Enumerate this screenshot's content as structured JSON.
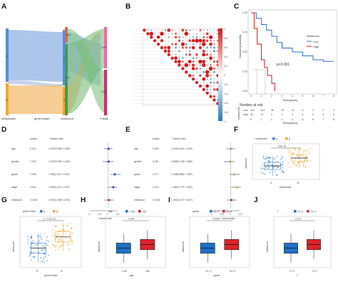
{
  "panel_labels": [
    "A",
    "B",
    "C",
    "D",
    "E",
    "F",
    "G",
    "H",
    "I",
    "J"
  ],
  "panel_a": {
    "axis_labels": [
      "m6Acluster",
      "geneCluster",
      "m6Ascore",
      "Fustat"
    ],
    "node_labels": [
      "A",
      "B",
      "A",
      "B",
      "High",
      "Low",
      "Alive",
      "Dead"
    ]
  },
  "panel_b": {
    "colorbar_ticks": [
      "1",
      "0.8",
      "0.6",
      "0.4",
      "0.2",
      "0",
      "-0.2",
      "-0.4",
      "-0.6",
      "-0.8",
      "-1"
    ]
  },
  "panel_c": {
    "ylabel": "Survival probability",
    "xlabel": "Time(years)",
    "legend_title": "m6Ascore",
    "legend_items": [
      "Low",
      "High"
    ],
    "pvalue": "p<0.001",
    "xticks": [
      "0",
      "1",
      "2",
      "3",
      "4",
      "5",
      "6",
      "7",
      "8"
    ],
    "yticks": [
      "0.00",
      "0.25",
      "0.50",
      "0.75",
      "1.00"
    ],
    "risk_title": "Number at risk",
    "risk_rows": [
      {
        "label": "Low",
        "values": [
          "144",
          "101",
          "39",
          "20",
          "11",
          "8",
          "3",
          "2",
          "2"
        ]
      },
      {
        "label": "High",
        "values": [
          "32",
          "13",
          "1",
          "0",
          "0",
          "0",
          "0",
          "0",
          "0"
        ]
      }
    ],
    "risk_ylabel": "m6Ascore",
    "risk_xlabel": "Time(years)"
  },
  "panel_d": {
    "headers": [
      "pvalue",
      "Hazard ratio"
    ],
    "rows": [
      {
        "name": "age",
        "pvalue": "0.111",
        "hr": "1.037(0.938~1.168)"
      },
      {
        "name": "gender",
        "pvalue": "0.333",
        "hr": "1.037(0.928~1.168)"
      },
      {
        "name": "grade",
        "pvalue": "0.008",
        "hr": "1.382(1.001~1.947)"
      },
      {
        "name": "stage",
        "pvalue": "0.014",
        "hr": "1.300(1.001~1.947)"
      },
      {
        "name": "m6Ascore",
        "pvalue": "<0.001",
        "hr": "1.057(1.038~1.076)"
      }
    ],
    "xlabel": "Hazard ratio",
    "xticks": [
      "0",
      "0.5",
      "1",
      "1.5"
    ]
  },
  "panel_e": {
    "headers": [
      "pvalue",
      "Hazard ratio"
    ],
    "rows": [
      {
        "name": "age",
        "pvalue": "0.529",
        "hr": "1.024(0.941~1.003)"
      },
      {
        "name": "gender",
        "pvalue": "0.487",
        "hr": "0.965(0.748~1.086)"
      },
      {
        "name": "grade",
        "pvalue": "0.277",
        "hr": "1.198(0.889~1.392)"
      },
      {
        "name": "stage",
        "pvalue": "0.474",
        "hr": "1.360(0.779~1.452)"
      },
      {
        "name": "m6Ascore",
        "pvalue": "<0.001",
        "hr": "1.051(1.027~1.067)"
      }
    ],
    "xlabel": "Hazard ratio",
    "xticks": [
      "0",
      "0.5",
      "1",
      "1.5"
    ]
  },
  "box_panels": [
    {
      "id": "F",
      "legend_title": "m6Acluster",
      "groups": [
        "A",
        "B"
      ],
      "pvalue": "5.9e-15",
      "xlabel": "m6Acluster",
      "ylabel": "m6Ascore",
      "colors": [
        "#3b82c4",
        "#f0a830"
      ],
      "style": "dots"
    },
    {
      "id": "G",
      "legend_title": "geneCluster",
      "groups": [
        "A",
        "B"
      ],
      "pvalue": "p < 2.2e-16",
      "xlabel": "geneCluster",
      "ylabel": "m6Ascore",
      "colors": [
        "#3b82c4",
        "#f0a830"
      ],
      "style": "dots"
    },
    {
      "id": "H",
      "legend_title": "age",
      "groups": [
        "<=65",
        ">65"
      ],
      "pvalue": "0.344",
      "xlabel": "age",
      "ylabel": "m6Ascore",
      "colors": [
        "#1f6fc8",
        "#e0222a"
      ],
      "style": "filled"
    },
    {
      "id": "I",
      "legend_title": "grade",
      "groups": [
        "G1~2",
        "G3~4"
      ],
      "pvalue": "0.0054",
      "xlabel": "grade",
      "ylabel": "m6Ascore",
      "colors": [
        "#1f6fc8",
        "#e0222a"
      ],
      "style": "filled"
    },
    {
      "id": "J",
      "legend_title": "T",
      "groups": [
        "T1~2",
        "T3~4"
      ],
      "pvalue": "0.017",
      "xlabel": "T",
      "ylabel": "m6Ascore",
      "colors": [
        "#1f6fc8",
        "#e0222a"
      ],
      "style": "filled"
    }
  ],
  "chart_data": [
    {
      "type": "line",
      "panel": "C",
      "x_label": "Time(years)",
      "y_label": "Survival probability",
      "ylim": [
        0,
        1
      ],
      "xlim": [
        0,
        8
      ],
      "series": [
        {
          "name": "Low",
          "x": [
            0,
            0.5,
            1,
            1.5,
            2,
            2.5,
            3,
            4,
            5,
            6,
            7,
            8
          ],
          "values": [
            1.0,
            0.93,
            0.85,
            0.78,
            0.7,
            0.62,
            0.55,
            0.5,
            0.45,
            0.4,
            0.38,
            0.38
          ]
        },
        {
          "name": "High",
          "x": [
            0,
            0.3,
            0.6,
            1,
            1.3,
            1.6,
            2,
            2.3
          ],
          "values": [
            1.0,
            0.8,
            0.6,
            0.4,
            0.3,
            0.2,
            0.1,
            0.0
          ]
        }
      ]
    },
    {
      "type": "scatter",
      "panel": "D",
      "xlabel": "Hazard ratio",
      "categories": [
        "age",
        "gender",
        "grade",
        "stage",
        "m6Ascore"
      ],
      "values": [
        1.037,
        1.037,
        1.382,
        1.3,
        1.057
      ],
      "xlim": [
        0,
        1.5
      ]
    },
    {
      "type": "scatter",
      "panel": "E",
      "xlabel": "Hazard ratio",
      "categories": [
        "age",
        "gender",
        "grade",
        "stage",
        "m6Ascore"
      ],
      "values": [
        1.024,
        0.965,
        1.198,
        1.36,
        1.051
      ],
      "xlim": [
        0,
        1.5
      ]
    }
  ]
}
